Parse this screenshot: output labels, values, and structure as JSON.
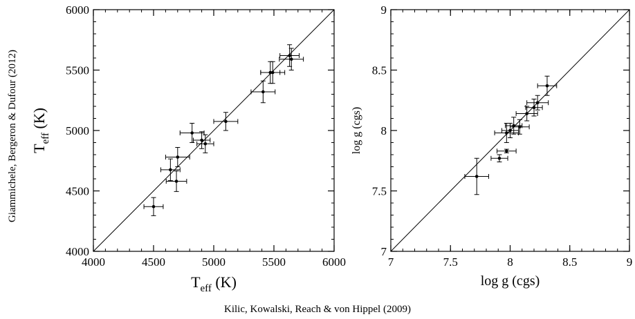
{
  "figure": {
    "shared_xlabel": "Kilic, Kowalski, Reach & von Hippel (2009)",
    "shared_ylabel": "Giammichele, Bergeron & Dufour (2012)"
  },
  "chart_data": [
    {
      "type": "scatter",
      "panel": "left",
      "xlabel": "T_eff (K)",
      "ylabel": "T_eff (K)",
      "xlim": [
        4000,
        6000
      ],
      "ylim": [
        4000,
        6000
      ],
      "xticks": [
        4000,
        4500,
        5000,
        5500,
        6000
      ],
      "yticks": [
        4000,
        4500,
        5000,
        5500,
        6000
      ],
      "grid": false,
      "reference_line": "y = x",
      "points": [
        {
          "x": 4500,
          "y": 4370,
          "xerr": 80,
          "yerr": 75
        },
        {
          "x": 4640,
          "y": 4675,
          "xerr": 80,
          "yerr": 90
        },
        {
          "x": 4690,
          "y": 4580,
          "xerr": 85,
          "yerr": 85
        },
        {
          "x": 4700,
          "y": 4780,
          "xerr": 100,
          "yerr": 80
        },
        {
          "x": 4820,
          "y": 4980,
          "xerr": 100,
          "yerr": 80
        },
        {
          "x": 4900,
          "y": 4920,
          "xerr": 70,
          "yerr": 70
        },
        {
          "x": 4930,
          "y": 4890,
          "xerr": 70,
          "yerr": 75
        },
        {
          "x": 5100,
          "y": 5075,
          "xerr": 100,
          "yerr": 75
        },
        {
          "x": 5410,
          "y": 5320,
          "xerr": 100,
          "yerr": 90
        },
        {
          "x": 5470,
          "y": 5480,
          "xerr": 80,
          "yerr": 90
        },
        {
          "x": 5490,
          "y": 5480,
          "xerr": 100,
          "yerr": 90
        },
        {
          "x": 5630,
          "y": 5620,
          "xerr": 80,
          "yerr": 90
        },
        {
          "x": 5645,
          "y": 5590,
          "xerr": 100,
          "yerr": 90
        }
      ]
    },
    {
      "type": "scatter",
      "panel": "right",
      "xlabel": "log g (cgs)",
      "ylabel": "log g (cgs)",
      "xlim": [
        7,
        9
      ],
      "ylim": [
        7,
        9
      ],
      "xticks": [
        7,
        7.5,
        8,
        8.5,
        9
      ],
      "yticks": [
        7,
        7.5,
        8,
        8.5,
        9
      ],
      "grid": false,
      "reference_line": "y = x",
      "points": [
        {
          "x": 7.72,
          "y": 7.62,
          "xerr": 0.1,
          "yerr": 0.15
        },
        {
          "x": 7.91,
          "y": 7.77,
          "xerr": 0.07,
          "yerr": 0.03
        },
        {
          "x": 7.97,
          "y": 7.83,
          "xerr": 0.08,
          "yerr": 0.015
        },
        {
          "x": 7.97,
          "y": 7.98,
          "xerr": 0.1,
          "yerr": 0.08
        },
        {
          "x": 8.0,
          "y": 8.0,
          "xerr": 0.07,
          "yerr": 0.06
        },
        {
          "x": 8.03,
          "y": 8.04,
          "xerr": 0.07,
          "yerr": 0.07
        },
        {
          "x": 8.08,
          "y": 8.03,
          "xerr": 0.08,
          "yerr": 0.06
        },
        {
          "x": 8.14,
          "y": 8.14,
          "xerr": 0.09,
          "yerr": 0.06
        },
        {
          "x": 8.2,
          "y": 8.19,
          "xerr": 0.07,
          "yerr": 0.07
        },
        {
          "x": 8.23,
          "y": 8.23,
          "xerr": 0.09,
          "yerr": 0.06
        },
        {
          "x": 8.31,
          "y": 8.37,
          "xerr": 0.08,
          "yerr": 0.08
        }
      ]
    }
  ]
}
